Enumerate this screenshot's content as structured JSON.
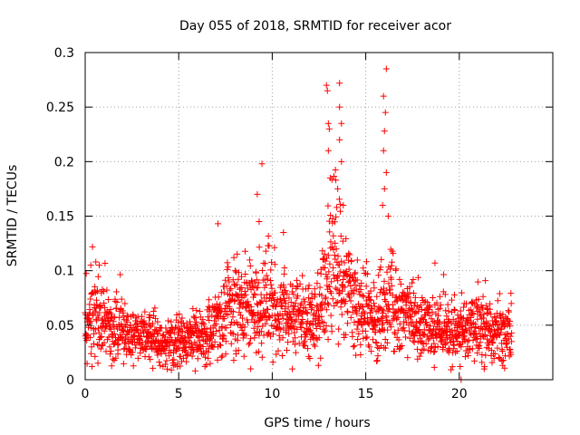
{
  "chart_data": {
    "type": "scatter",
    "title": "Day 055 of 2018, SRMTID for receiver acor",
    "xlabel": "GPS time / hours",
    "ylabel": "SRMTID / TECUs",
    "xlim": [
      0,
      25
    ],
    "ylim": [
      0,
      0.3
    ],
    "xticks": [
      0,
      5,
      10,
      15,
      20
    ],
    "yticks": [
      0,
      0.05,
      0.1,
      0.15,
      0.2,
      0.25,
      0.3
    ],
    "xtick_labels": [
      "0",
      "5",
      "10",
      "15",
      "20"
    ],
    "ytick_labels": [
      "0",
      "0.05",
      "0.1",
      "0.15",
      "0.2",
      "0.25",
      "0.3"
    ],
    "grid": true,
    "marker": "+",
    "color": "#ff0000",
    "series": [
      {
        "name": "SRMTID",
        "x_range": [
          0,
          22.8
        ],
        "trend_x": [
          0,
          0.5,
          1,
          2,
          3,
          4,
          5,
          6,
          7,
          7.5,
          8,
          9,
          9.5,
          10,
          11,
          12,
          12.5,
          13,
          13.3,
          13.6,
          14,
          14.5,
          15,
          15.5,
          16,
          16.3,
          16.6,
          17,
          18,
          19,
          20,
          20.5,
          21,
          22,
          22.8
        ],
        "trend_y": [
          0.05,
          0.06,
          0.05,
          0.045,
          0.04,
          0.035,
          0.035,
          0.04,
          0.05,
          0.065,
          0.07,
          0.065,
          0.07,
          0.065,
          0.06,
          0.055,
          0.065,
          0.09,
          0.12,
          0.1,
          0.08,
          0.065,
          0.06,
          0.055,
          0.065,
          0.08,
          0.065,
          0.06,
          0.05,
          0.045,
          0.04,
          0.045,
          0.05,
          0.045,
          0.04
        ],
        "highlights": [
          {
            "x": 0.3,
            "y": 0.105
          },
          {
            "x": 0.75,
            "y": 0.105
          },
          {
            "x": 7.1,
            "y": 0.143
          },
          {
            "x": 9.2,
            "y": 0.17
          },
          {
            "x": 9.45,
            "y": 0.198
          },
          {
            "x": 9.3,
            "y": 0.145
          },
          {
            "x": 10.6,
            "y": 0.135
          },
          {
            "x": 12.9,
            "y": 0.27
          },
          {
            "x": 12.95,
            "y": 0.265
          },
          {
            "x": 13.0,
            "y": 0.235
          },
          {
            "x": 13.05,
            "y": 0.23
          },
          {
            "x": 13.0,
            "y": 0.21
          },
          {
            "x": 13.1,
            "y": 0.185
          },
          {
            "x": 13.4,
            "y": 0.183
          },
          {
            "x": 13.6,
            "y": 0.272
          },
          {
            "x": 13.6,
            "y": 0.25
          },
          {
            "x": 13.7,
            "y": 0.235
          },
          {
            "x": 13.6,
            "y": 0.22
          },
          {
            "x": 13.7,
            "y": 0.2
          },
          {
            "x": 13.5,
            "y": 0.175
          },
          {
            "x": 13.8,
            "y": 0.16
          },
          {
            "x": 16.1,
            "y": 0.285
          },
          {
            "x": 15.95,
            "y": 0.26
          },
          {
            "x": 16.05,
            "y": 0.245
          },
          {
            "x": 16.0,
            "y": 0.228
          },
          {
            "x": 15.95,
            "y": 0.21
          },
          {
            "x": 16.1,
            "y": 0.19
          },
          {
            "x": 16.0,
            "y": 0.175
          },
          {
            "x": 15.9,
            "y": 0.16
          },
          {
            "x": 16.2,
            "y": 0.15
          },
          {
            "x": 18.7,
            "y": 0.107
          },
          {
            "x": 20.05,
            "y": 0.012
          },
          {
            "x": 20.1,
            "y": 0.0
          }
        ]
      }
    ]
  }
}
